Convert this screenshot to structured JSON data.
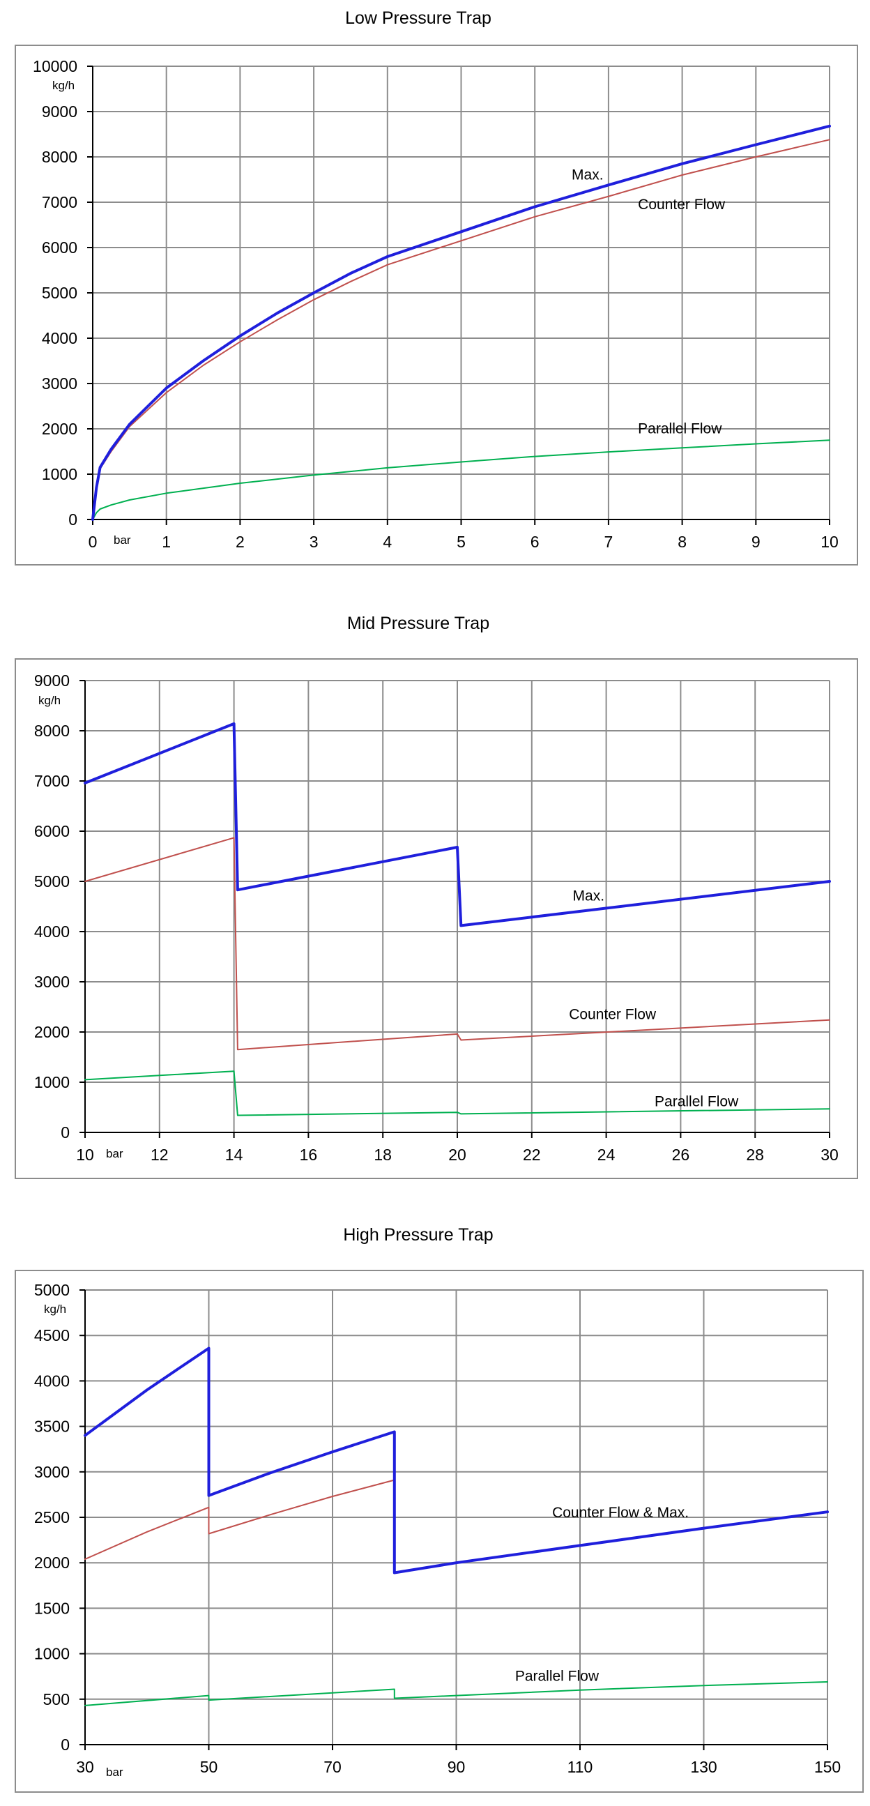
{
  "chart_data": [
    {
      "type": "line",
      "title": "Low Pressure Trap",
      "xlabel": "bar",
      "ylabel": "kg/h",
      "xlim": [
        0,
        10
      ],
      "ylim": [
        0,
        10000
      ],
      "xticks": [
        "0",
        "1",
        "2",
        "3",
        "4",
        "5",
        "6",
        "7",
        "8",
        "9",
        "10"
      ],
      "yticks": [
        "0",
        "1000",
        "2000",
        "3000",
        "4000",
        "5000",
        "6000",
        "7000",
        "8000",
        "9000",
        "10000"
      ],
      "grid": true,
      "series": [
        {
          "name": "Max.",
          "color": "#1f1fdc",
          "width": 4,
          "x": [
            0,
            0.05,
            0.1,
            0.25,
            0.5,
            1,
            1.5,
            2,
            2.5,
            3,
            3.5,
            4,
            5,
            6,
            7,
            8,
            9,
            10
          ],
          "y": [
            0,
            700,
            1150,
            1550,
            2100,
            2900,
            3500,
            4050,
            4550,
            5000,
            5430,
            5800,
            6350,
            6900,
            7380,
            7850,
            8270,
            8680
          ]
        },
        {
          "name": "Counter Flow",
          "color": "#c0504d",
          "width": 2,
          "x": [
            0,
            0.05,
            0.1,
            0.25,
            0.5,
            1,
            1.5,
            2,
            2.5,
            3,
            3.5,
            4,
            5,
            6,
            7,
            8,
            9,
            10
          ],
          "y": [
            0,
            700,
            1120,
            1500,
            2050,
            2800,
            3400,
            3920,
            4400,
            4850,
            5250,
            5620,
            6150,
            6680,
            7130,
            7600,
            8000,
            8380
          ]
        },
        {
          "name": "Parallel Flow",
          "color": "#00b050",
          "width": 2,
          "x": [
            0,
            0.05,
            0.1,
            0.25,
            0.5,
            1,
            2,
            3,
            4,
            5,
            6,
            7,
            8,
            9,
            10
          ],
          "y": [
            0,
            150,
            230,
            320,
            430,
            580,
            800,
            980,
            1140,
            1270,
            1390,
            1490,
            1580,
            1670,
            1750
          ]
        }
      ],
      "annotations": [
        {
          "text": "Max.",
          "x": 6.5,
          "y": 7500
        },
        {
          "text": "Counter Flow",
          "x": 7.4,
          "y": 6850
        },
        {
          "text": "Parallel Flow",
          "x": 7.4,
          "y": 1900
        }
      ]
    },
    {
      "type": "line",
      "title": "Mid Pressure Trap",
      "xlabel": "bar",
      "ylabel": "kg/h",
      "xlim": [
        10,
        30
      ],
      "ylim": [
        0,
        9000
      ],
      "xticks": [
        "10",
        "12",
        "14",
        "16",
        "18",
        "20",
        "22",
        "24",
        "26",
        "28",
        "30"
      ],
      "yticks": [
        "0",
        "1000",
        "2000",
        "3000",
        "4000",
        "5000",
        "6000",
        "7000",
        "8000",
        "9000"
      ],
      "grid": true,
      "series": [
        {
          "name": "Max.",
          "color": "#1f1fdc",
          "width": 4,
          "x": [
            10,
            14,
            14.1,
            14.1,
            20,
            20.1,
            20.1,
            30
          ],
          "y": [
            6960,
            8140,
            4830,
            4830,
            5680,
            4120,
            4120,
            5000
          ]
        },
        {
          "name": "Counter Flow",
          "color": "#c0504d",
          "width": 2,
          "x": [
            10,
            14,
            14.1,
            20,
            20.1,
            30
          ],
          "y": [
            5000,
            5870,
            1650,
            1960,
            1840,
            2240
          ]
        },
        {
          "name": "Parallel Flow",
          "color": "#00b050",
          "width": 2,
          "x": [
            10,
            14,
            14.1,
            20,
            20.1,
            30
          ],
          "y": [
            1050,
            1220,
            340,
            400,
            370,
            470
          ]
        }
      ],
      "annotations": [
        {
          "text": "Max.",
          "x": 23.1,
          "y": 4620
        },
        {
          "text": "Counter Flow",
          "x": 23,
          "y": 2260
        },
        {
          "text": "Parallel Flow",
          "x": 25.3,
          "y": 520
        }
      ]
    },
    {
      "type": "line",
      "title": "High Pressure Trap",
      "xlabel": "bar",
      "ylabel": "kg/h",
      "xlim": [
        30,
        150
      ],
      "ylim": [
        0,
        5000
      ],
      "xticks": [
        "30",
        "50",
        "70",
        "90",
        "110",
        "130",
        "150"
      ],
      "yticks": [
        "0",
        "500",
        "1000",
        "1500",
        "2000",
        "2500",
        "3000",
        "3500",
        "4000",
        "4500",
        "5000"
      ],
      "grid": true,
      "series": [
        {
          "name": "Counter Flow & Max.",
          "color": "#1f1fdc",
          "width": 4,
          "x": [
            30,
            35,
            40,
            45,
            50,
            50,
            60,
            70,
            80,
            80,
            90,
            110,
            130,
            150
          ],
          "y": [
            3400,
            3650,
            3900,
            4130,
            4360,
            2740,
            2990,
            3220,
            3440,
            1890,
            2000,
            2190,
            2380,
            2560
          ]
        },
        {
          "name": "Counter Flow",
          "color": "#c0504d",
          "width": 2,
          "x": [
            30,
            40,
            50,
            50,
            60,
            70,
            80
          ],
          "y": [
            2040,
            2340,
            2610,
            2320,
            2530,
            2730,
            2910
          ]
        },
        {
          "name": "Parallel Flow",
          "color": "#00b050",
          "width": 2,
          "x": [
            30,
            50,
            50,
            80,
            80,
            90,
            110,
            130,
            150
          ],
          "y": [
            430,
            540,
            490,
            610,
            510,
            540,
            600,
            650,
            690
          ]
        }
      ],
      "annotations": [
        {
          "text": "Counter Flow & Max.",
          "x": 105.5,
          "y": 2500
        },
        {
          "text": "Parallel Flow",
          "x": 99.5,
          "y": 700
        }
      ]
    }
  ]
}
